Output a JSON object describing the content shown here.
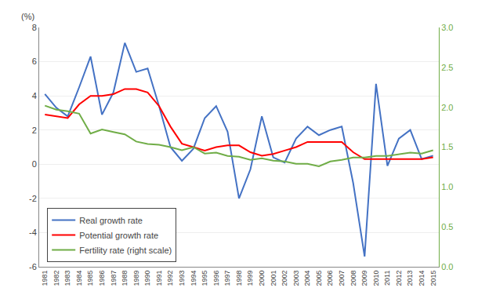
{
  "chart_data": {
    "type": "line",
    "ylabel": "(%)",
    "x": [
      1981,
      1982,
      1983,
      1984,
      1985,
      1986,
      1987,
      1988,
      1989,
      1990,
      1991,
      1992,
      1993,
      1994,
      1995,
      1996,
      1997,
      1998,
      1999,
      2000,
      2001,
      2002,
      2003,
      2004,
      2005,
      2006,
      2007,
      2008,
      2009,
      2010,
      2011,
      2012,
      2013,
      2014,
      2015
    ],
    "series": [
      {
        "name": "Real growth rate",
        "color": "#4472C4",
        "values": [
          4.1,
          3.3,
          2.8,
          4.5,
          6.3,
          2.9,
          4.2,
          7.1,
          5.4,
          5.6,
          3.4,
          1.0,
          0.2,
          0.9,
          2.7,
          3.4,
          1.9,
          -2.0,
          -0.3,
          2.8,
          0.4,
          0.1,
          1.5,
          2.2,
          1.7,
          2.0,
          2.2,
          -1.1,
          -5.4,
          4.7,
          -0.1,
          1.5,
          2.0,
          0.3,
          0.5
        ]
      },
      {
        "name": "Potential growth rate",
        "color": "#FF0000",
        "values": [
          2.9,
          2.8,
          2.7,
          3.5,
          4.0,
          4.0,
          4.1,
          4.4,
          4.4,
          4.2,
          3.4,
          2.2,
          1.2,
          1.0,
          0.8,
          1.0,
          1.1,
          1.1,
          0.7,
          0.5,
          0.6,
          0.8,
          1.0,
          1.3,
          1.3,
          1.3,
          1.3,
          0.7,
          0.3,
          0.3,
          0.3,
          0.3,
          0.3,
          0.3,
          0.4
        ]
      },
      {
        "name": "Fertility rate (right scale)",
        "color": "#70AD47",
        "axis": "y2",
        "values": [
          2.02,
          1.97,
          1.95,
          1.92,
          1.67,
          1.72,
          1.69,
          1.66,
          1.57,
          1.54,
          1.53,
          1.5,
          1.46,
          1.5,
          1.42,
          1.43,
          1.39,
          1.38,
          1.34,
          1.36,
          1.33,
          1.32,
          1.29,
          1.29,
          1.26,
          1.32,
          1.34,
          1.37,
          1.37,
          1.39,
          1.39,
          1.41,
          1.43,
          1.42,
          1.46
        ]
      }
    ],
    "xlim": [
      1980.5,
      2015.5
    ],
    "xticks": [
      1981,
      1982,
      1983,
      1984,
      1985,
      1986,
      1987,
      1988,
      1989,
      1990,
      1991,
      1992,
      1993,
      1994,
      1995,
      1996,
      1997,
      1998,
      1999,
      2000,
      2001,
      2002,
      2003,
      2004,
      2005,
      2006,
      2007,
      2008,
      2009,
      2010,
      2011,
      2012,
      2013,
      2014,
      2015
    ],
    "ylim": [
      -6,
      8
    ],
    "yticks": [
      -6,
      -4,
      -2,
      0,
      2,
      4,
      6,
      8
    ],
    "y2lim": [
      0,
      3
    ],
    "y2ticks": [
      {
        "value": 0,
        "label": "0.0"
      },
      0.5,
      {
        "value": 1.0,
        "label": "1.0"
      },
      1.5,
      {
        "value": 2.0,
        "label": "2.0"
      },
      2.5,
      {
        "value": 3.0,
        "label": "3.0"
      }
    ],
    "grid": true,
    "legend": "lower left"
  }
}
